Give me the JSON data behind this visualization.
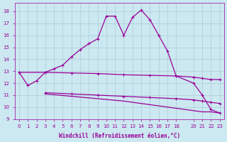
{
  "xlabel": "Windchill (Refroidissement éolien,°C)",
  "bg_color": "#cce8f0",
  "grid_color": "#aaccdd",
  "line_color": "#990099",
  "ylim": [
    9,
    18.7
  ],
  "xlim": [
    -0.5,
    23.5
  ],
  "yticks": [
    9,
    10,
    11,
    12,
    13,
    14,
    15,
    16,
    17,
    18
  ],
  "xticks": [
    0,
    1,
    2,
    3,
    4,
    5,
    6,
    7,
    8,
    9,
    10,
    11,
    12,
    13,
    14,
    15,
    16,
    17,
    18,
    20,
    21,
    22,
    23
  ],
  "curve1": {
    "x": [
      0,
      1,
      2,
      3,
      4,
      5,
      6,
      7,
      8,
      9,
      10,
      11,
      12,
      13,
      14,
      15,
      16,
      17,
      18,
      20,
      21,
      22,
      23
    ],
    "y": [
      12.9,
      11.8,
      12.2,
      12.9,
      13.2,
      13.5,
      14.2,
      14.8,
      15.3,
      15.7,
      17.6,
      17.6,
      16.0,
      17.5,
      18.1,
      17.3,
      16.0,
      14.7,
      12.6,
      12.0,
      11.0,
      9.8,
      9.5
    ]
  },
  "curve2": {
    "x": [
      0,
      3,
      6,
      9,
      12,
      15,
      18,
      20,
      21,
      22,
      23
    ],
    "y": [
      12.9,
      12.9,
      12.85,
      12.8,
      12.7,
      12.65,
      12.6,
      12.5,
      12.4,
      12.3,
      12.3
    ]
  },
  "curve3": {
    "x": [
      3,
      6,
      9,
      12,
      15,
      18,
      20,
      21,
      22,
      23
    ],
    "y": [
      11.2,
      11.1,
      11.0,
      10.9,
      10.8,
      10.7,
      10.6,
      10.5,
      10.4,
      10.3
    ]
  },
  "curve4": {
    "x": [
      3,
      6,
      9,
      12,
      15,
      18,
      20,
      21,
      22,
      23
    ],
    "y": [
      11.1,
      10.9,
      10.7,
      10.5,
      10.2,
      9.9,
      9.7,
      9.6,
      9.6,
      9.5
    ]
  }
}
